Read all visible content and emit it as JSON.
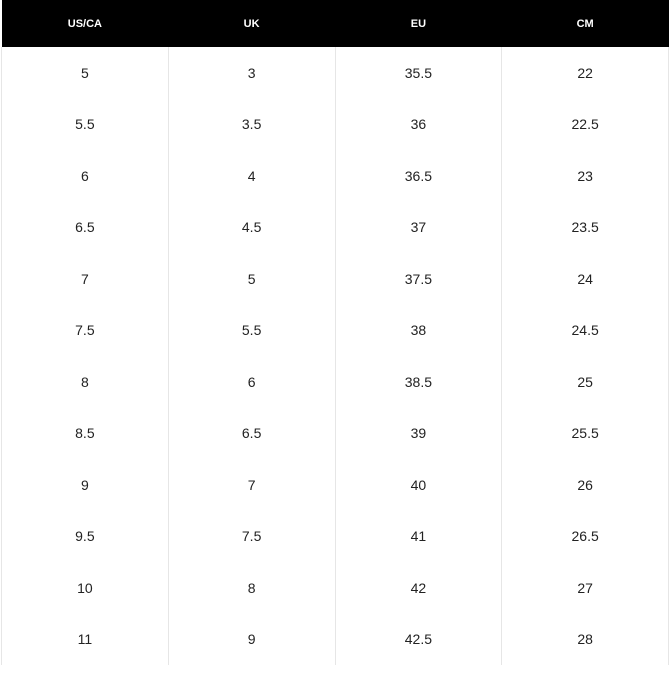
{
  "table": {
    "headers": [
      "US/CA",
      "UK",
      "EU",
      "CM"
    ],
    "rows": [
      [
        "5",
        "3",
        "35.5",
        "22"
      ],
      [
        "5.5",
        "3.5",
        "36",
        "22.5"
      ],
      [
        "6",
        "4",
        "36.5",
        "23"
      ],
      [
        "6.5",
        "4.5",
        "37",
        "23.5"
      ],
      [
        "7",
        "5",
        "37.5",
        "24"
      ],
      [
        "7.5",
        "5.5",
        "38",
        "24.5"
      ],
      [
        "8",
        "6",
        "38.5",
        "25"
      ],
      [
        "8.5",
        "6.5",
        "39",
        "25.5"
      ],
      [
        "9",
        "7",
        "40",
        "26"
      ],
      [
        "9.5",
        "7.5",
        "41",
        "26.5"
      ],
      [
        "10",
        "8",
        "42",
        "27"
      ],
      [
        "11",
        "9",
        "42.5",
        "28"
      ]
    ]
  }
}
